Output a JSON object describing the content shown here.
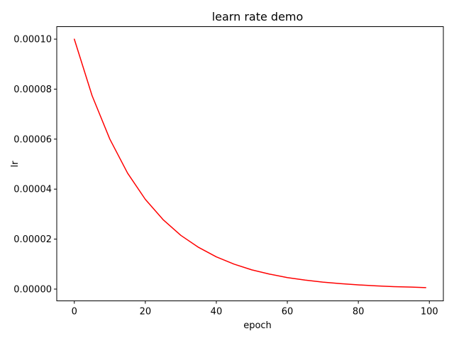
{
  "chart_data": {
    "type": "line",
    "title": "learn rate demo",
    "xlabel": "epoch",
    "ylabel": "lr",
    "xlim": [
      -4.95,
      103.95
    ],
    "ylim": [
      -4.7e-06,
      0.000105
    ],
    "x_ticks": [
      0,
      20,
      40,
      60,
      80,
      100
    ],
    "x_tick_labels": [
      "0",
      "20",
      "40",
      "60",
      "80",
      "100"
    ],
    "y_ticks": [
      0.0,
      2e-05,
      4e-05,
      6e-05,
      8e-05,
      0.0001
    ],
    "y_tick_labels": [
      "0.00000",
      "0.00002",
      "0.00004",
      "0.00006",
      "0.00008",
      "0.00010"
    ],
    "grid": false,
    "series": [
      {
        "color": "#ff0000",
        "x": [
          0,
          5,
          10,
          15,
          20,
          25,
          30,
          35,
          40,
          45,
          50,
          55,
          60,
          65,
          70,
          75,
          80,
          85,
          90,
          95,
          99
        ],
        "y": [
          0.0001,
          7.74e-05,
          6e-05,
          4.64e-05,
          3.59e-05,
          2.78e-05,
          2.15e-05,
          1.67e-05,
          1.29e-05,
          1e-05,
          7.7e-06,
          6e-06,
          4.6e-06,
          3.6e-06,
          2.8e-06,
          2.2e-06,
          1.7e-06,
          1.3e-06,
          1e-06,
          8e-07,
          6e-07
        ]
      }
    ]
  }
}
